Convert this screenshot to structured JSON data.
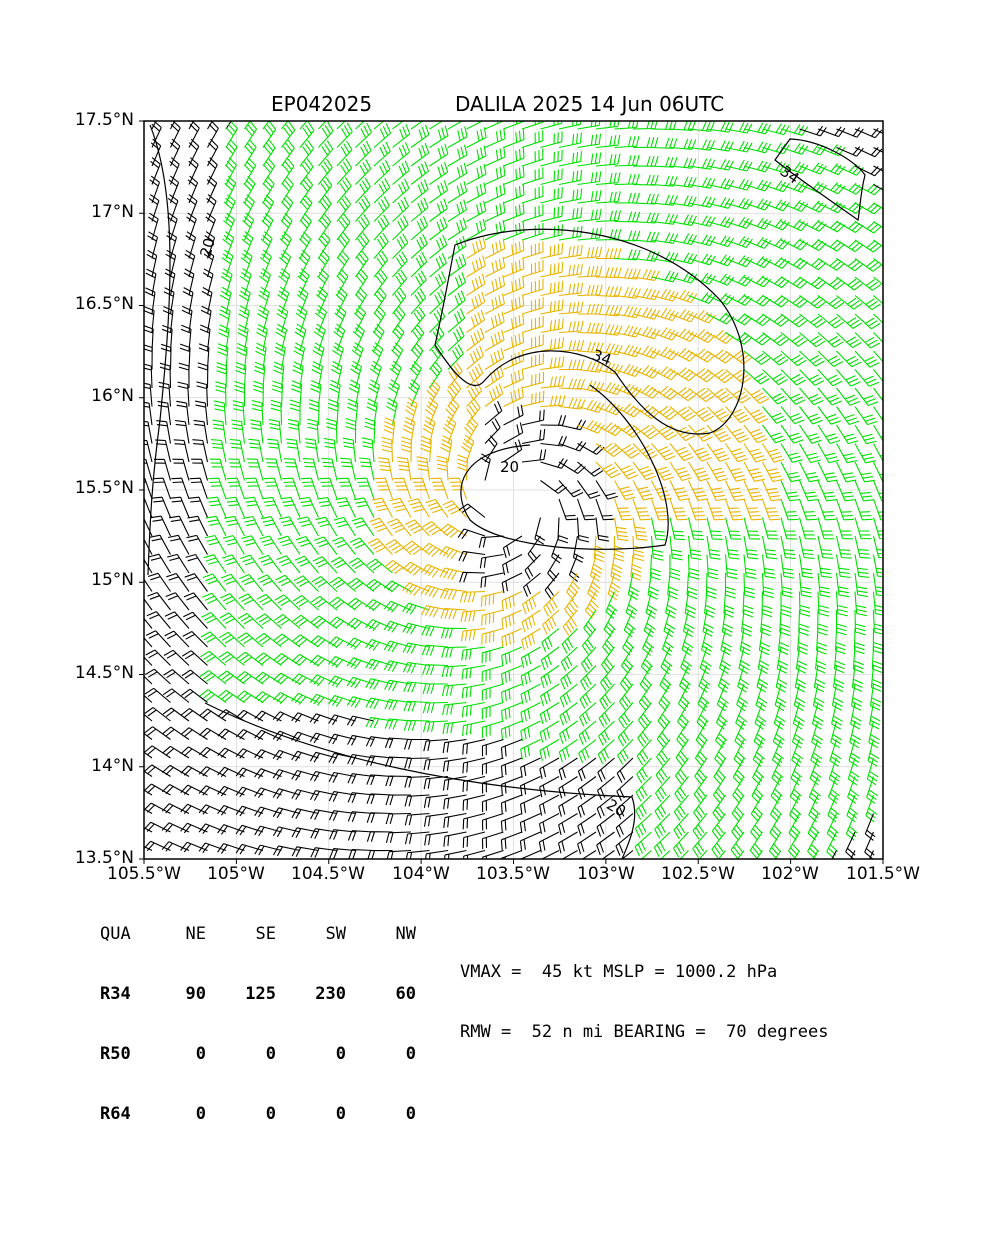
{
  "title": {
    "storm_id": "EP042025",
    "heading": "DALILA 2025 14 Jun 06UTC"
  },
  "map": {
    "lon_range": [
      -105.5,
      -101.5
    ],
    "lat_range": [
      13.5,
      17.5
    ],
    "center": {
      "lon": -103.5,
      "lat": 15.45
    },
    "grid": true,
    "x_ticks": [
      "105.5°W",
      "105°W",
      "104.5°W",
      "104°W",
      "103.5°W",
      "103°W",
      "102.5°W",
      "102°W",
      "101.5°W"
    ],
    "y_ticks": [
      "17.5°N",
      "17°N",
      "16.5°N",
      "16°N",
      "15.5°N",
      "15°N",
      "14.5°N",
      "14°N",
      "13.5°N"
    ],
    "contour_labels": [
      "20",
      "20",
      "20",
      "34",
      "34"
    ],
    "colors": {
      "weak": "#000000",
      "ts": "#00e000",
      "strong": "#e8b400",
      "grid": "#d8d8d8"
    }
  },
  "wind_radii": {
    "headers": [
      "QUA",
      "NE",
      "SE",
      "SW",
      "NW"
    ],
    "rows": [
      [
        "R34",
        "90",
        "125",
        "230",
        "60"
      ],
      [
        "R50",
        "0",
        "0",
        "0",
        "0"
      ],
      [
        "R64",
        "0",
        "0",
        "0",
        "0"
      ]
    ]
  },
  "stats": {
    "line1": "VMAX =  45 kt MSLP = 1000.2 hPa",
    "line2": "RMW =  52 n mi BEARING =  70 degrees"
  }
}
